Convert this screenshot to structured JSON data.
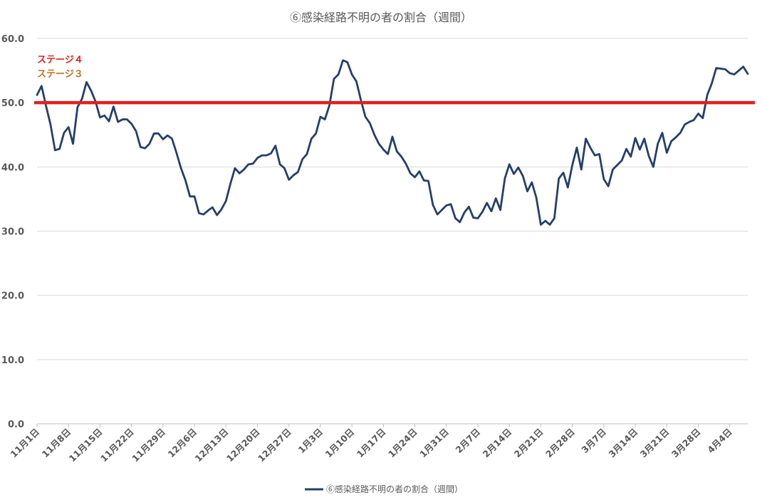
{
  "chart_data": {
    "type": "line",
    "title": "⑥感染経路不明の者の割合（週間）",
    "ylim": [
      0,
      60
    ],
    "yticks": [
      "0.0",
      "10.0",
      "20.0",
      "30.0",
      "40.0",
      "50.0",
      "60.0"
    ],
    "ytick_values": [
      0,
      10,
      20,
      30,
      40,
      50,
      60
    ],
    "x_day_range": [
      1,
      159
    ],
    "xticks": [
      {
        "label": "11月1日",
        "day": 1
      },
      {
        "label": "11月8日",
        "day": 8
      },
      {
        "label": "11月15日",
        "day": 15
      },
      {
        "label": "11月22日",
        "day": 22
      },
      {
        "label": "11月29日",
        "day": 29
      },
      {
        "label": "12月6日",
        "day": 36
      },
      {
        "label": "12月13日",
        "day": 43
      },
      {
        "label": "12月20日",
        "day": 50
      },
      {
        "label": "12月27日",
        "day": 57
      },
      {
        "label": "1月3日",
        "day": 64
      },
      {
        "label": "1月10日",
        "day": 71
      },
      {
        "label": "1月17日",
        "day": 78
      },
      {
        "label": "1月24日",
        "day": 85
      },
      {
        "label": "1月31日",
        "day": 92
      },
      {
        "label": "2月7日",
        "day": 99
      },
      {
        "label": "2月14日",
        "day": 106
      },
      {
        "label": "2月21日",
        "day": 113
      },
      {
        "label": "2月28日",
        "day": 120
      },
      {
        "label": "3月7日",
        "day": 127
      },
      {
        "label": "3月14日",
        "day": 134
      },
      {
        "label": "3月21日",
        "day": 141
      },
      {
        "label": "3月28日",
        "day": 148
      },
      {
        "label": "4月4日",
        "day": 155
      }
    ],
    "grid": true,
    "legend_position": "bottom",
    "series": [
      {
        "name": "⑥感染経路不明の者の割合（週間）",
        "color": "#243F6B",
        "x_days": [
          1,
          2,
          3,
          4,
          5,
          6,
          7,
          8,
          9,
          10,
          11,
          12,
          13,
          14,
          15,
          16,
          17,
          18,
          19,
          20,
          21,
          22,
          23,
          24,
          25,
          26,
          27,
          28,
          29,
          30,
          31,
          32,
          33,
          34,
          35,
          36,
          37,
          38,
          39,
          40,
          41,
          42,
          43,
          44,
          45,
          46,
          47,
          48,
          49,
          50,
          51,
          52,
          53,
          54,
          55,
          56,
          57,
          58,
          59,
          60,
          61,
          62,
          63,
          64,
          65,
          66,
          67,
          68,
          69,
          70,
          71,
          72,
          73,
          74,
          75,
          76,
          77,
          78,
          79,
          80,
          81,
          82,
          83,
          84,
          85,
          86,
          87,
          88,
          89,
          90,
          91,
          92,
          93,
          94,
          95,
          96,
          97,
          98,
          99,
          100,
          101,
          102,
          103,
          104,
          105,
          106,
          107,
          108,
          109,
          110,
          111,
          112,
          113,
          114,
          115,
          116,
          117,
          118,
          119,
          120,
          121,
          122,
          123,
          124,
          125,
          126,
          127,
          128,
          129,
          130,
          131,
          132,
          133,
          134,
          135,
          136,
          137,
          138,
          139,
          140,
          141,
          142,
          143,
          144,
          145,
          146,
          147,
          148,
          149,
          150,
          151,
          152,
          153,
          154,
          155,
          156,
          157,
          158,
          159
        ],
        "values": [
          51.2,
          52.6,
          49.5,
          46.6,
          42.6,
          42.8,
          45.3,
          46.2,
          43.6,
          49.3,
          50.6,
          53.2,
          51.9,
          50.2,
          47.7,
          48.0,
          47.1,
          49.4,
          47.0,
          47.4,
          47.4,
          46.7,
          45.6,
          43.1,
          42.9,
          43.6,
          45.2,
          45.2,
          44.3,
          44.9,
          44.4,
          42.2,
          39.8,
          37.9,
          35.4,
          35.4,
          32.8,
          32.6,
          33.2,
          33.7,
          32.5,
          33.4,
          34.7,
          37.4,
          39.8,
          39.0,
          39.6,
          40.4,
          40.5,
          41.4,
          41.8,
          41.8,
          42.1,
          43.3,
          40.4,
          39.8,
          38.0,
          38.7,
          39.2,
          41.2,
          42.0,
          44.4,
          45.2,
          47.8,
          47.4,
          49.6,
          53.7,
          54.4,
          56.6,
          56.3,
          54.4,
          53.3,
          50.4,
          47.8,
          46.8,
          45.0,
          43.6,
          42.7,
          42.0,
          44.7,
          42.4,
          41.6,
          40.5,
          39.0,
          38.4,
          39.3,
          37.9,
          37.8,
          34.1,
          32.6,
          33.3,
          34.0,
          34.2,
          32.0,
          31.4,
          32.9,
          33.8,
          32.1,
          32.0,
          33.0,
          34.4,
          33.1,
          35.1,
          33.3,
          38.2,
          40.4,
          38.9,
          39.9,
          38.6,
          36.2,
          37.6,
          35.2,
          31.0,
          31.6,
          31.0,
          32.0,
          38.2,
          39.1,
          36.8,
          40.3,
          43.0,
          39.6,
          44.4,
          43.0,
          41.8,
          42.0,
          38.1,
          37.0,
          39.6,
          40.3,
          41.0,
          42.8,
          41.6,
          44.5,
          42.7,
          44.4,
          41.7,
          40.0,
          43.6,
          45.3,
          42.2,
          44.0,
          44.6,
          45.3,
          46.6,
          47.0,
          47.3,
          48.3,
          47.6,
          51.2,
          53.0,
          55.4,
          55.3,
          55.2,
          54.6,
          54.4,
          55.0,
          55.6,
          54.5
        ]
      }
    ],
    "thresholds": [
      {
        "label": "ステージ４",
        "value": 50,
        "color": "#E02020"
      },
      {
        "label": "ステージ３",
        "value": 50,
        "color": "#C07020"
      }
    ]
  },
  "legend": {
    "label": "⑥感染経路不明の者の割合（週間）"
  }
}
